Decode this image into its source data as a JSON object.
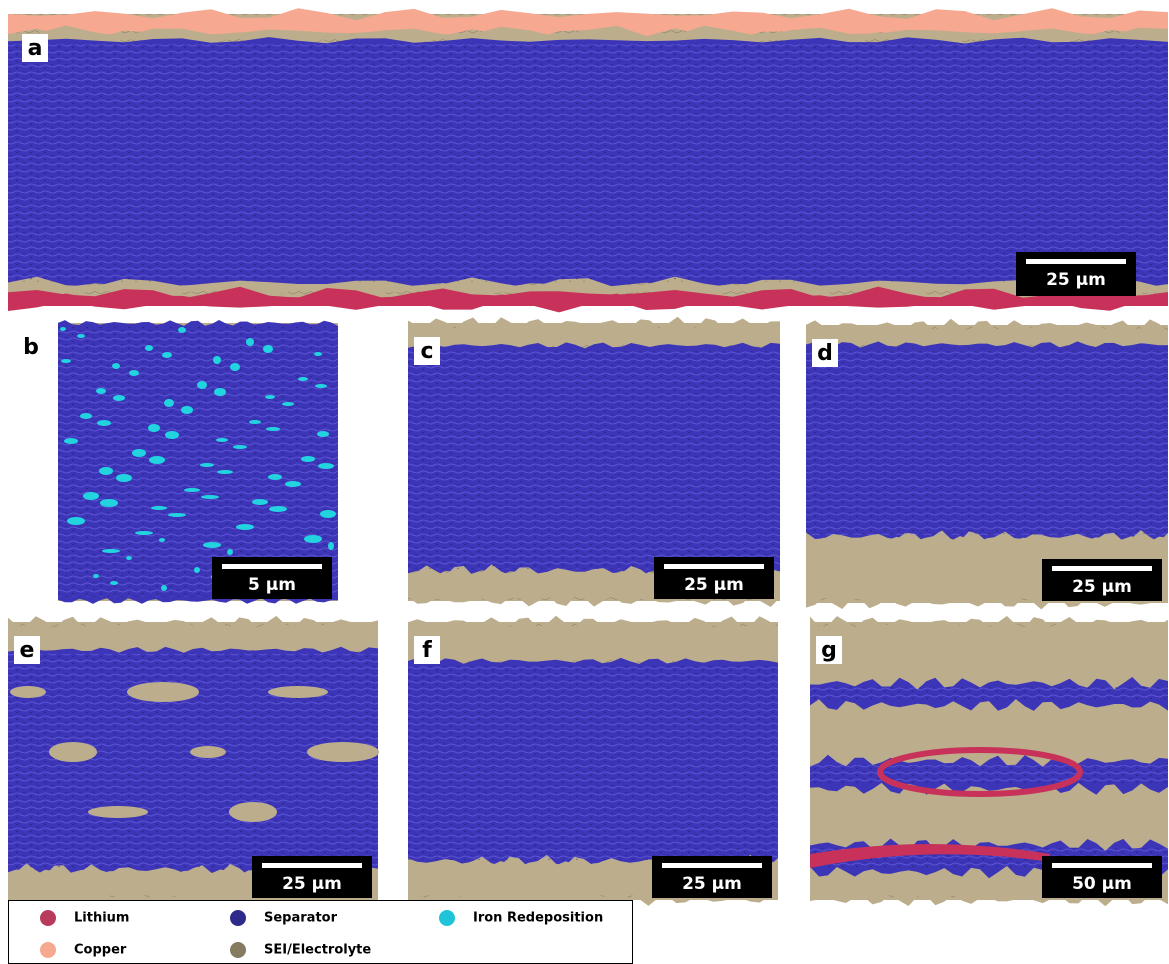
{
  "panels": [
    {
      "label": "a",
      "scale": "25 µm"
    },
    {
      "label": "b",
      "scale": "5 µm"
    },
    {
      "label": "c",
      "scale": "25 µm"
    },
    {
      "label": "d",
      "scale": "25 µm"
    },
    {
      "label": "e",
      "scale": "25 µm"
    },
    {
      "label": "f",
      "scale": "25 µm"
    },
    {
      "label": "g",
      "scale": "50 µm"
    }
  ],
  "legend": [
    {
      "name": "Lithium",
      "color": "#b83b5e"
    },
    {
      "name": "Separator",
      "color": "#2e2a8a"
    },
    {
      "name": "Iron Redeposition",
      "color": "#1fc4d8"
    },
    {
      "name": "Copper",
      "color": "#f5a98f"
    },
    {
      "name": "SEI/Electrolyte",
      "color": "#857b60"
    }
  ]
}
